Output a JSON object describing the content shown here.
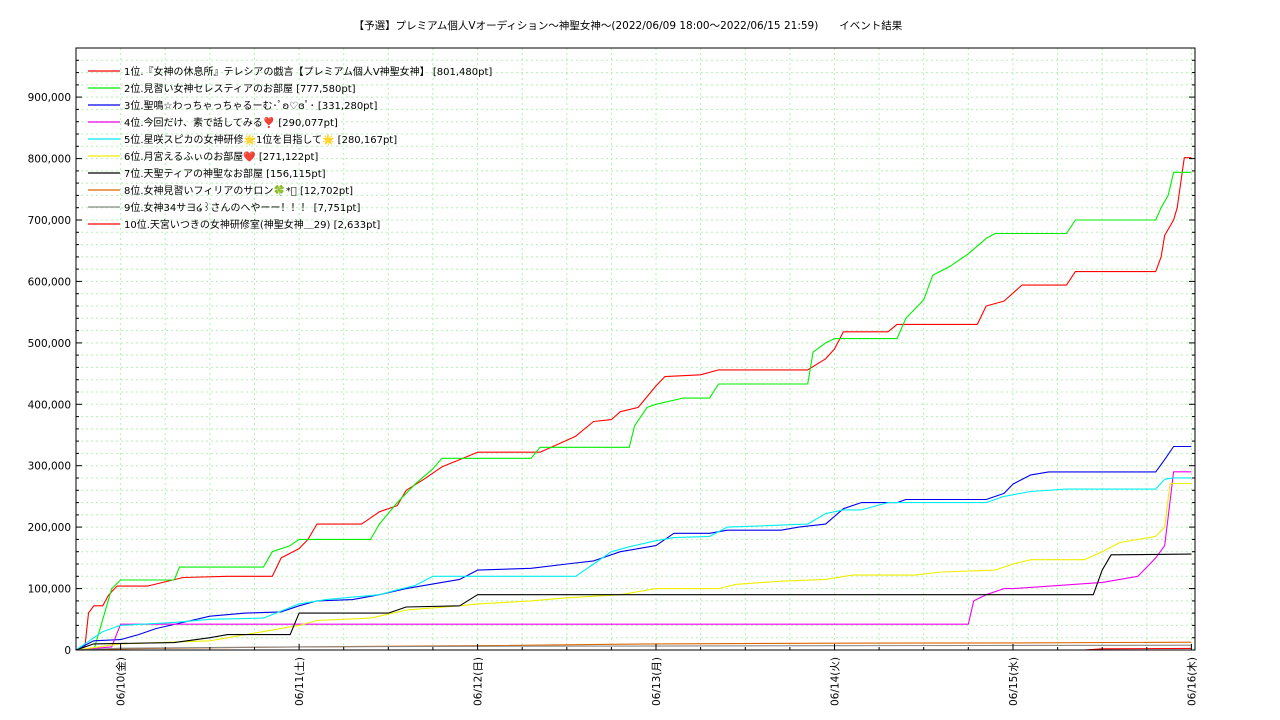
{
  "chart_data": {
    "type": "line",
    "title": "【予選】プレミアム個人Vオーディション〜神聖女神～(2022/06/09 18:00～2022/06/15 21:59)　　イベント結果",
    "xlabel": "",
    "ylabel": "",
    "x_unit": "days since 2022/06/10 00:00",
    "xlim": [
      -0.25,
      6.02
    ],
    "ylim": [
      0,
      980000
    ],
    "grid": true,
    "legend_position": "top-left",
    "x_ticks": [
      {
        "x": 0,
        "label": "06/10(金)"
      },
      {
        "x": 1,
        "label": "06/11(土)"
      },
      {
        "x": 2,
        "label": "06/12(日)"
      },
      {
        "x": 3,
        "label": "06/13(月)"
      },
      {
        "x": 4,
        "label": "06/14(火)"
      },
      {
        "x": 5,
        "label": "06/15(水)"
      },
      {
        "x": 6,
        "label": "06/16(木)"
      }
    ],
    "y_ticks": [
      {
        "y": 0,
        "label": "0"
      },
      {
        "y": 100000,
        "label": "100,000"
      },
      {
        "y": 200000,
        "label": "200,000"
      },
      {
        "y": 300000,
        "label": "300,000"
      },
      {
        "y": 400000,
        "label": "400,000"
      },
      {
        "y": 500000,
        "label": "500,000"
      },
      {
        "y": 600000,
        "label": "600,000"
      },
      {
        "y": 700000,
        "label": "700,000"
      },
      {
        "y": 800000,
        "label": "800,000"
      },
      {
        "y": 900000,
        "label": "900,000"
      }
    ],
    "series": [
      {
        "name": "1位.『女神の休息所』テレシアの戯言【プレミアム個人V神聖女神】 [801,480pt]",
        "color": "#ff0000",
        "points": [
          [
            -0.25,
            0
          ],
          [
            -0.2,
            5000
          ],
          [
            -0.18,
            60000
          ],
          [
            -0.15,
            72000
          ],
          [
            -0.1,
            72000
          ],
          [
            -0.07,
            88000
          ],
          [
            -0.05,
            95000
          ],
          [
            -0.02,
            104000
          ],
          [
            0.15,
            104000
          ],
          [
            0.35,
            118000
          ],
          [
            0.6,
            120000
          ],
          [
            0.85,
            120000
          ],
          [
            0.9,
            150000
          ],
          [
            1.0,
            165000
          ],
          [
            1.05,
            180000
          ],
          [
            1.1,
            205000
          ],
          [
            1.35,
            205000
          ],
          [
            1.45,
            225000
          ],
          [
            1.55,
            235000
          ],
          [
            1.6,
            260000
          ],
          [
            1.7,
            278000
          ],
          [
            1.8,
            298000
          ],
          [
            1.9,
            310000
          ],
          [
            2.0,
            322000
          ],
          [
            2.35,
            322000
          ],
          [
            2.45,
            335000
          ],
          [
            2.55,
            348000
          ],
          [
            2.65,
            372000
          ],
          [
            2.75,
            375000
          ],
          [
            2.8,
            388000
          ],
          [
            2.9,
            395000
          ],
          [
            3.0,
            430000
          ],
          [
            3.05,
            445000
          ],
          [
            3.25,
            448000
          ],
          [
            3.35,
            456000
          ],
          [
            3.85,
            456000
          ],
          [
            3.95,
            474000
          ],
          [
            4.0,
            490000
          ],
          [
            4.05,
            518000
          ],
          [
            4.3,
            518000
          ],
          [
            4.35,
            530000
          ],
          [
            4.8,
            530000
          ],
          [
            4.85,
            560000
          ],
          [
            4.95,
            568000
          ],
          [
            5.05,
            594000
          ],
          [
            5.3,
            594000
          ],
          [
            5.35,
            616000
          ],
          [
            5.8,
            616000
          ],
          [
            5.83,
            640000
          ],
          [
            5.85,
            675000
          ],
          [
            5.9,
            700000
          ],
          [
            5.92,
            720000
          ],
          [
            5.96,
            801480
          ],
          [
            6.0,
            801480
          ]
        ]
      },
      {
        "name": "2位.見習い女神セレスティアのお部屋 [777,580pt]",
        "color": "#00ee00",
        "points": [
          [
            -0.25,
            0
          ],
          [
            -0.15,
            0
          ],
          [
            -0.1,
            50000
          ],
          [
            -0.05,
            100000
          ],
          [
            0,
            114000
          ],
          [
            0.3,
            114000
          ],
          [
            0.33,
            135000
          ],
          [
            0.8,
            135000
          ],
          [
            0.85,
            160000
          ],
          [
            0.95,
            170000
          ],
          [
            1.0,
            180000
          ],
          [
            1.4,
            180000
          ],
          [
            1.45,
            205000
          ],
          [
            1.55,
            240000
          ],
          [
            1.65,
            270000
          ],
          [
            1.75,
            295000
          ],
          [
            1.8,
            312000
          ],
          [
            2.3,
            312000
          ],
          [
            2.35,
            330000
          ],
          [
            2.85,
            330000
          ],
          [
            2.88,
            365000
          ],
          [
            2.95,
            395000
          ],
          [
            3.0,
            400000
          ],
          [
            3.15,
            410000
          ],
          [
            3.3,
            410000
          ],
          [
            3.35,
            433000
          ],
          [
            3.85,
            433000
          ],
          [
            3.88,
            485000
          ],
          [
            3.95,
            500000
          ],
          [
            4.0,
            507000
          ],
          [
            4.35,
            507000
          ],
          [
            4.4,
            540000
          ],
          [
            4.5,
            570000
          ],
          [
            4.55,
            610000
          ],
          [
            4.65,
            625000
          ],
          [
            4.75,
            645000
          ],
          [
            4.85,
            670000
          ],
          [
            4.9,
            678000
          ],
          [
            5.3,
            678000
          ],
          [
            5.35,
            700000
          ],
          [
            5.8,
            700000
          ],
          [
            5.83,
            720000
          ],
          [
            5.87,
            740000
          ],
          [
            5.9,
            777580
          ],
          [
            6.0,
            777580
          ]
        ]
      },
      {
        "name": "3位.聖鳴☆わっちゃっちゃるーむ･ﾟʚ♡ɞﾟ･ [331,280pt]",
        "color": "#0000ee",
        "points": [
          [
            -0.25,
            0
          ],
          [
            -0.15,
            15000
          ],
          [
            0,
            17000
          ],
          [
            0.1,
            25000
          ],
          [
            0.2,
            35000
          ],
          [
            0.35,
            45000
          ],
          [
            0.5,
            55000
          ],
          [
            0.7,
            60000
          ],
          [
            0.9,
            62000
          ],
          [
            1.0,
            72000
          ],
          [
            1.1,
            80000
          ],
          [
            1.3,
            82000
          ],
          [
            1.45,
            90000
          ],
          [
            1.6,
            100000
          ],
          [
            1.8,
            110000
          ],
          [
            1.9,
            115000
          ],
          [
            2.0,
            130000
          ],
          [
            2.3,
            133000
          ],
          [
            2.5,
            140000
          ],
          [
            2.65,
            145000
          ],
          [
            2.8,
            160000
          ],
          [
            3.0,
            170000
          ],
          [
            3.1,
            190000
          ],
          [
            3.3,
            190000
          ],
          [
            3.4,
            195000
          ],
          [
            3.7,
            195000
          ],
          [
            3.8,
            200000
          ],
          [
            3.95,
            205000
          ],
          [
            4.05,
            230000
          ],
          [
            4.15,
            240000
          ],
          [
            4.35,
            240000
          ],
          [
            4.4,
            245000
          ],
          [
            4.85,
            245000
          ],
          [
            4.95,
            255000
          ],
          [
            5.0,
            270000
          ],
          [
            5.1,
            285000
          ],
          [
            5.2,
            290000
          ],
          [
            5.8,
            290000
          ],
          [
            5.85,
            310000
          ],
          [
            5.9,
            331280
          ],
          [
            6.0,
            331280
          ]
        ]
      },
      {
        "name": "4位.今回だけ、素で話してみる❣️ [290,077pt]",
        "color": "#ee00ee",
        "points": [
          [
            -0.25,
            0
          ],
          [
            -0.05,
            5000
          ],
          [
            0,
            42000
          ],
          [
            1.0,
            42000
          ],
          [
            4.75,
            42000
          ],
          [
            4.78,
            80000
          ],
          [
            4.85,
            90000
          ],
          [
            4.95,
            100000
          ],
          [
            5.0,
            100000
          ],
          [
            5.5,
            110000
          ],
          [
            5.7,
            120000
          ],
          [
            5.8,
            150000
          ],
          [
            5.85,
            170000
          ],
          [
            5.9,
            290077
          ],
          [
            6.0,
            290077
          ]
        ]
      },
      {
        "name": "5位.星咲スピカの女神研修🌟1位を目指して🌟 [280,167pt]",
        "color": "#00eeee",
        "points": [
          [
            -0.25,
            0
          ],
          [
            -0.1,
            30000
          ],
          [
            0,
            40000
          ],
          [
            0.3,
            45000
          ],
          [
            0.5,
            50000
          ],
          [
            0.8,
            52000
          ],
          [
            1.0,
            75000
          ],
          [
            1.15,
            82000
          ],
          [
            1.45,
            90000
          ],
          [
            1.55,
            98000
          ],
          [
            1.65,
            105000
          ],
          [
            1.75,
            120000
          ],
          [
            2.0,
            120000
          ],
          [
            2.55,
            120000
          ],
          [
            2.65,
            140000
          ],
          [
            2.75,
            160000
          ],
          [
            2.85,
            168000
          ],
          [
            3.0,
            178000
          ],
          [
            3.1,
            183000
          ],
          [
            3.3,
            185000
          ],
          [
            3.4,
            200000
          ],
          [
            3.85,
            205000
          ],
          [
            3.95,
            222000
          ],
          [
            4.05,
            228000
          ],
          [
            4.15,
            228000
          ],
          [
            4.3,
            240000
          ],
          [
            4.85,
            240000
          ],
          [
            4.95,
            250000
          ],
          [
            5.1,
            258000
          ],
          [
            5.3,
            262000
          ],
          [
            5.8,
            262000
          ],
          [
            5.85,
            278000
          ],
          [
            5.9,
            280167
          ],
          [
            6.0,
            280167
          ]
        ]
      },
      {
        "name": "6位.月宮えるふぃのお部屋❤️ [271,122pt]",
        "color": "#eeee00",
        "points": [
          [
            -0.25,
            0
          ],
          [
            0,
            10000
          ],
          [
            0.5,
            15000
          ],
          [
            1.0,
            40000
          ],
          [
            1.1,
            48000
          ],
          [
            1.4,
            52000
          ],
          [
            1.6,
            65000
          ],
          [
            1.9,
            72000
          ],
          [
            2.0,
            75000
          ],
          [
            2.3,
            80000
          ],
          [
            2.5,
            85000
          ],
          [
            2.8,
            90000
          ],
          [
            3.0,
            100000
          ],
          [
            3.35,
            100000
          ],
          [
            3.45,
            107000
          ],
          [
            3.7,
            112000
          ],
          [
            3.95,
            115000
          ],
          [
            4.1,
            122000
          ],
          [
            4.45,
            122000
          ],
          [
            4.6,
            127000
          ],
          [
            4.9,
            130000
          ],
          [
            5.0,
            140000
          ],
          [
            5.1,
            147000
          ],
          [
            5.4,
            147000
          ],
          [
            5.5,
            160000
          ],
          [
            5.6,
            175000
          ],
          [
            5.7,
            180000
          ],
          [
            5.8,
            185000
          ],
          [
            5.85,
            200000
          ],
          [
            5.88,
            271122
          ],
          [
            6.0,
            271122
          ]
        ]
      },
      {
        "name": "7位.天聖ティアの神聖なお部屋 [156,115pt]",
        "color": "#000000",
        "points": [
          [
            -0.25,
            0
          ],
          [
            -0.15,
            10000
          ],
          [
            0.3,
            12000
          ],
          [
            0.5,
            20000
          ],
          [
            0.6,
            25000
          ],
          [
            0.95,
            25000
          ],
          [
            1.0,
            60000
          ],
          [
            1.5,
            60000
          ],
          [
            1.6,
            70000
          ],
          [
            1.9,
            72000
          ],
          [
            2.0,
            90000
          ],
          [
            2.3,
            90000
          ],
          [
            2.5,
            90000
          ],
          [
            5.45,
            90000
          ],
          [
            5.5,
            130000
          ],
          [
            5.55,
            155000
          ],
          [
            6.0,
            156115
          ]
        ]
      },
      {
        "name": "8位.女神見習いフィリアのサロン🍀*ﾟ  [12,702pt]",
        "color": "#dd6600",
        "points": [
          [
            -0.25,
            0
          ],
          [
            0,
            2000
          ],
          [
            1.0,
            5000
          ],
          [
            2.0,
            7000
          ],
          [
            3.0,
            10000
          ],
          [
            4.0,
            11000
          ],
          [
            5.0,
            11500
          ],
          [
            6.0,
            12702
          ]
        ]
      },
      {
        "name": "9位.女神34サヨ໒꒱さんのへやーー！！！ [7,751pt]",
        "color": "#888888",
        "points": [
          [
            -0.25,
            0
          ],
          [
            0,
            3000
          ],
          [
            1.0,
            5000
          ],
          [
            2.0,
            6000
          ],
          [
            4.0,
            7000
          ],
          [
            6.0,
            7751
          ]
        ]
      },
      {
        "name": "10位.天宮いつきの女神研修室(神聖女神＿29) [2,633pt]",
        "color": "#ff0000",
        "points": [
          [
            -0.25,
            0
          ],
          [
            5.4,
            0
          ],
          [
            5.5,
            2000
          ],
          [
            6.0,
            2633
          ]
        ]
      }
    ]
  }
}
